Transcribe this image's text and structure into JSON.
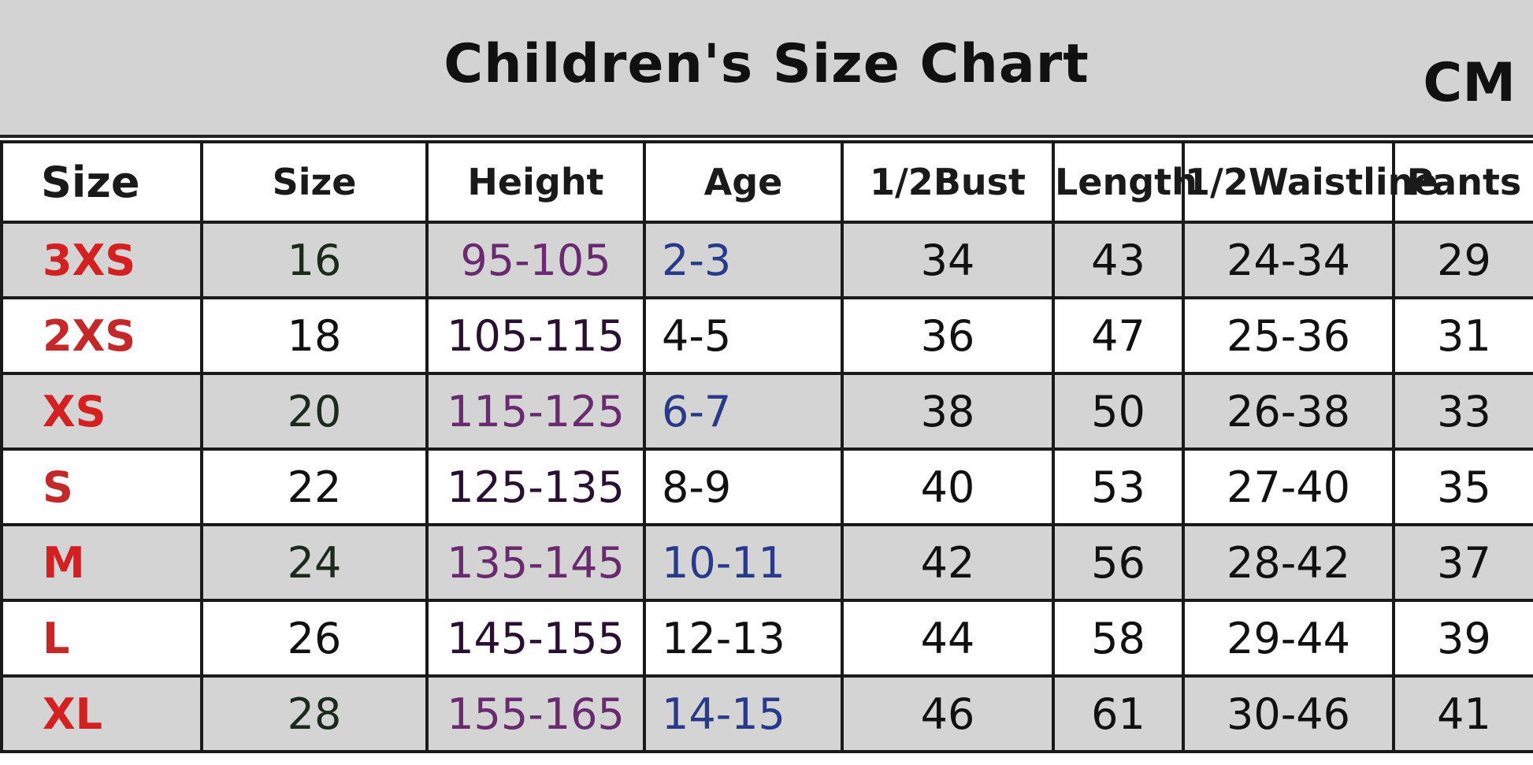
{
  "title": "Children's Size Chart",
  "unit": "CM",
  "headers": [
    "Size",
    "Size",
    "Height",
    "Age",
    "1/2Bust",
    "Length",
    "1/2Waistline",
    "Pants"
  ],
  "rows": [
    [
      "3XS",
      "16",
      "95-105",
      "2-3",
      "34",
      "43",
      "24-34",
      "29"
    ],
    [
      "2XS",
      "18",
      "105-115",
      "4-5",
      "36",
      "47",
      "25-36",
      "31"
    ],
    [
      "XS",
      "20",
      "115-125",
      "6-7",
      "38",
      "50",
      "26-38",
      "33"
    ],
    [
      "S",
      "22",
      "125-135",
      "8-9",
      "40",
      "53",
      "27-40",
      "35"
    ],
    [
      "M",
      "24",
      "135-145",
      "10-11",
      "42",
      "56",
      "28-42",
      "37"
    ],
    [
      "L",
      "26",
      "145-155",
      "12-13",
      "44",
      "58",
      "29-44",
      "39"
    ],
    [
      "XL",
      "28",
      "155-165",
      "14-15",
      "46",
      "61",
      "30-46",
      "41"
    ]
  ],
  "colors": {
    "size_label": "#d42020",
    "height_gray_row": "#6a2a70",
    "age_gray_row": "#2a3a8a",
    "row_gray": "#d4d4d4"
  }
}
